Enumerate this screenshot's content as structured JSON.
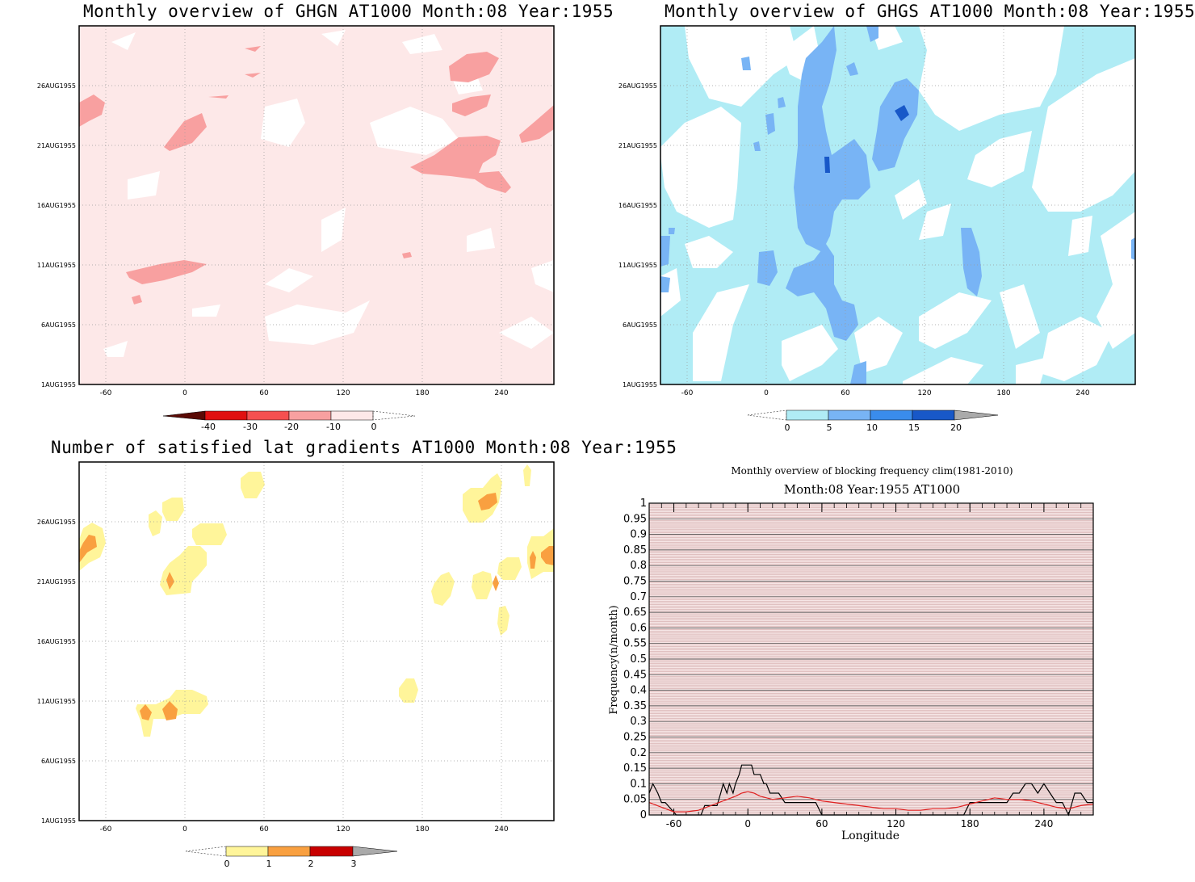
{
  "panels": [
    {
      "id": "ghgn",
      "title": "Monthly overview of GHGN AT1000 Month:08 Year:1955",
      "legend": {
        "labels": [
          "-40",
          "-30",
          "-20",
          "-10",
          "0"
        ],
        "colors": [
          "#5a0a05",
          "#e01010",
          "#f55050",
          "#f8a0a0",
          "#fde8e8"
        ],
        "overflow": "lower"
      }
    },
    {
      "id": "ghgs",
      "title": "Monthly overview of GHGS AT1000 Month:08 Year:1955",
      "legend": {
        "labels": [
          "0",
          "5",
          "10",
          "15",
          "20"
        ],
        "colors": [
          "#b0ecf5",
          "#78b4f5",
          "#3a8cec",
          "#1858c8",
          "#aaaaaa"
        ],
        "overflow": "upper"
      }
    },
    {
      "id": "grad",
      "title": "Number of satisfied lat gradients AT1000 Month:08 Year:1955",
      "legend": {
        "labels": [
          "0",
          "1",
          "2",
          "3"
        ],
        "colors": [
          "#fff59a",
          "#f9a040",
          "#c80000",
          "#aaaaaa"
        ],
        "overflow": "upper"
      }
    }
  ],
  "map_axes": {
    "x_ticks": [
      "-60",
      "0",
      "60",
      "120",
      "180",
      "240"
    ],
    "y_ticks": [
      "1AUG1955",
      "6AUG1955",
      "11AUG1955",
      "16AUG1955",
      "21AUG1955",
      "26AUG1955"
    ]
  },
  "colors": {
    "ghgn_bg": "#fde8e8",
    "ghgn_fill": "#f8a0a0",
    "ghgs_light": "#b0ecf5",
    "ghgs_mid": "#78b4f5",
    "ghgs_dark": "#1858c8",
    "grad_yellow": "#fff59a",
    "grad_orange": "#f9a040",
    "grid": "#9a9a9a"
  },
  "chart_data": {
    "type": "line",
    "title": "Monthly overview of blocking frequency clim(1981-2010)",
    "subtitle": "Month:08 Year:1955  AT1000",
    "xlabel": "Longitude",
    "ylabel": "Frequency(n/month)",
    "xlim": [
      -80,
      280
    ],
    "ylim": [
      0,
      1
    ],
    "x_ticks": [
      "-60",
      "0",
      "60",
      "120",
      "180",
      "240"
    ],
    "y_ticks": [
      "0",
      "0.05",
      "0.1",
      "0.15",
      "0.2",
      "0.25",
      "0.3",
      "0.35",
      "0.4",
      "0.45",
      "0.5",
      "0.55",
      "0.6",
      "0.65",
      "0.7",
      "0.75",
      "0.8",
      "0.85",
      "0.9",
      "0.95",
      "1"
    ],
    "series": [
      {
        "color": "#000000",
        "x": [
          -80,
          -77,
          -73,
          -70,
          -67,
          -58,
          -55,
          -50,
          -43,
          -38,
          -35,
          -30,
          -25,
          -22,
          -20,
          -17,
          -15,
          -12,
          -10,
          -7,
          -5,
          -2,
          0,
          3,
          5,
          8,
          10,
          13,
          15,
          18,
          25,
          30,
          35,
          40,
          45,
          50,
          55,
          60,
          65,
          70,
          80,
          90,
          100,
          110,
          120,
          130,
          140,
          150,
          160,
          165,
          170,
          175,
          180,
          185,
          190,
          200,
          205,
          210,
          215,
          220,
          225,
          230,
          235,
          240,
          245,
          250,
          255,
          260,
          265,
          270,
          275,
          280
        ],
        "y": [
          0.07,
          0.1,
          0.07,
          0.04,
          0.04,
          0.0,
          0.0,
          0.0,
          0.0,
          0.0,
          0.03,
          0.03,
          0.03,
          0.07,
          0.1,
          0.07,
          0.1,
          0.07,
          0.1,
          0.13,
          0.16,
          0.16,
          0.16,
          0.16,
          0.13,
          0.13,
          0.13,
          0.1,
          0.1,
          0.07,
          0.07,
          0.04,
          0.04,
          0.04,
          0.04,
          0.04,
          0.04,
          0.0,
          0.0,
          0.0,
          0.0,
          0.0,
          0.0,
          0.0,
          0.0,
          0.0,
          0.0,
          0.0,
          0.0,
          0.0,
          0.0,
          0.0,
          0.04,
          0.04,
          0.04,
          0.04,
          0.04,
          0.04,
          0.07,
          0.07,
          0.1,
          0.1,
          0.07,
          0.1,
          0.07,
          0.04,
          0.04,
          0.0,
          0.07,
          0.07,
          0.04,
          0.04
        ]
      },
      {
        "color": "#e02020",
        "x": [
          -80,
          -70,
          -60,
          -50,
          -40,
          -30,
          -20,
          -10,
          -5,
          0,
          5,
          10,
          20,
          30,
          40,
          50,
          60,
          70,
          80,
          90,
          100,
          110,
          120,
          130,
          140,
          150,
          160,
          170,
          180,
          190,
          200,
          210,
          220,
          230,
          240,
          250,
          260,
          270,
          280
        ],
        "y": [
          0.04,
          0.025,
          0.01,
          0.01,
          0.015,
          0.03,
          0.045,
          0.06,
          0.07,
          0.075,
          0.07,
          0.06,
          0.05,
          0.055,
          0.06,
          0.055,
          0.045,
          0.04,
          0.035,
          0.03,
          0.025,
          0.02,
          0.02,
          0.015,
          0.015,
          0.02,
          0.02,
          0.025,
          0.035,
          0.045,
          0.055,
          0.05,
          0.05,
          0.045,
          0.035,
          0.025,
          0.02,
          0.03,
          0.035
        ]
      }
    ]
  }
}
